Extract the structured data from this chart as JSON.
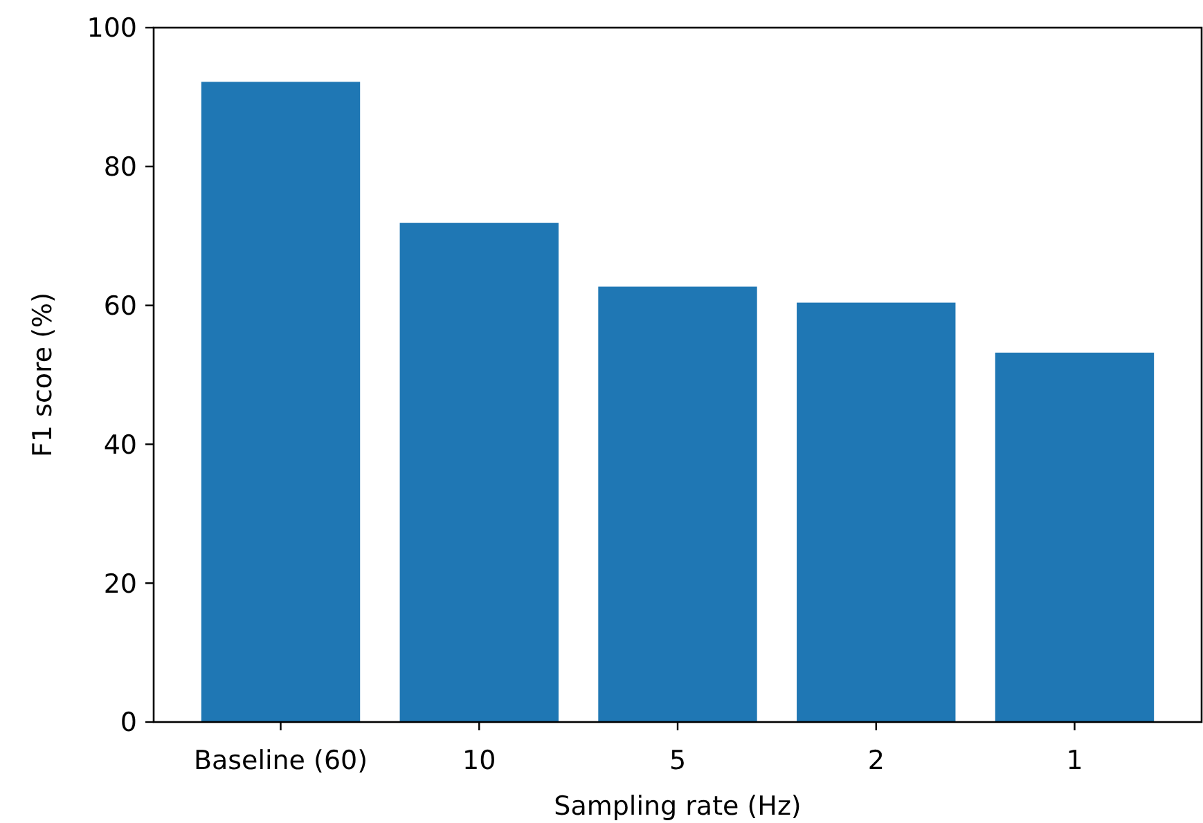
{
  "chart_data": {
    "type": "bar",
    "xlabel": "Sampling rate (Hz)",
    "ylabel": "F1 score (%)",
    "categories": [
      "Baseline (60)",
      "10",
      "5",
      "2",
      "1"
    ],
    "values": [
      92.2,
      71.9,
      62.7,
      60.4,
      53.2
    ],
    "color": "#1f77b4",
    "ylim": [
      0,
      100
    ],
    "yticks": [
      0,
      20,
      40,
      60,
      80,
      100
    ],
    "grid": false
  }
}
